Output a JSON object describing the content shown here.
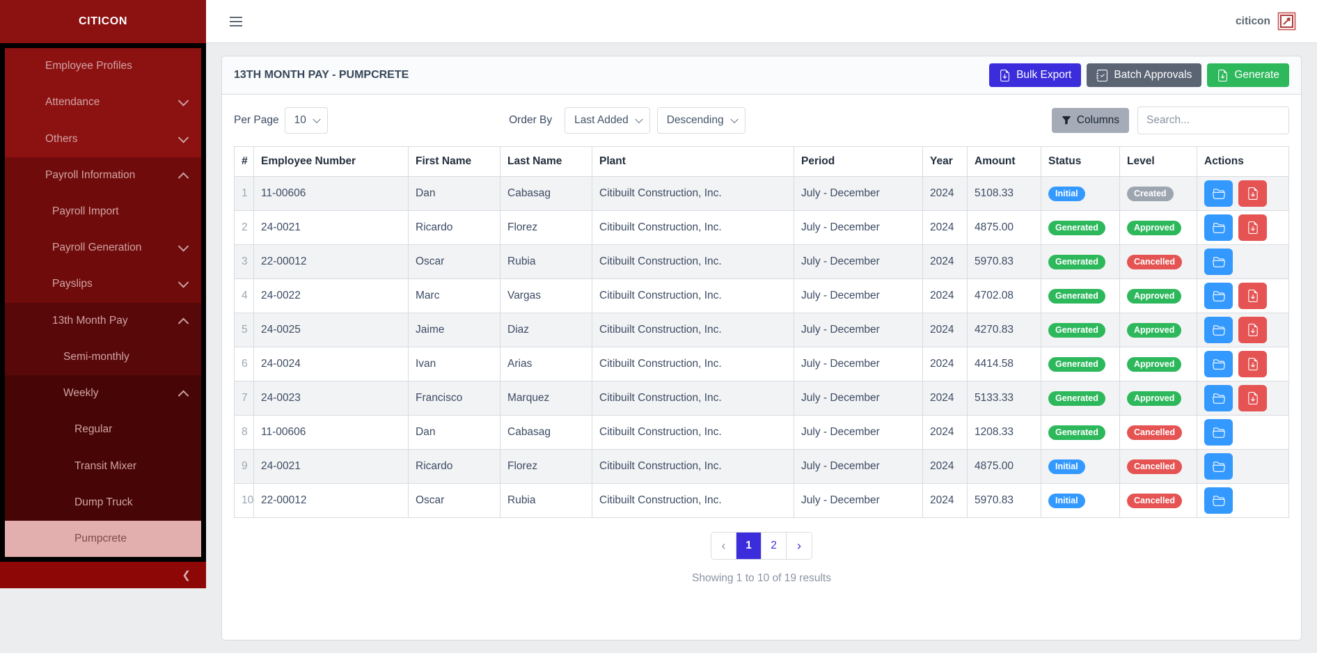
{
  "brand": "CITICON",
  "topbar": {
    "user_label": "citicon"
  },
  "sidebar": {
    "items": [
      {
        "label": "Employee Profiles",
        "level": 1,
        "group": 1,
        "chevron": null,
        "active": false
      },
      {
        "label": "Attendance",
        "level": 1,
        "group": 1,
        "chevron": "down",
        "active": false
      },
      {
        "label": "Others",
        "level": 1,
        "group": 1,
        "chevron": "down",
        "active": false
      },
      {
        "label": "Payroll Information",
        "level": 1,
        "group": 2,
        "chevron": "up",
        "active": false
      },
      {
        "label": "Payroll Import",
        "level": 2,
        "group": 2,
        "chevron": null,
        "active": false
      },
      {
        "label": "Payroll Generation",
        "level": 2,
        "group": 2,
        "chevron": "down",
        "active": false
      },
      {
        "label": "Payslips",
        "level": 2,
        "group": 2,
        "chevron": "down",
        "active": false
      },
      {
        "label": "13th Month Pay",
        "level": 2,
        "group": 3,
        "chevron": "up",
        "active": false
      },
      {
        "label": "Semi-monthly",
        "level": 3,
        "group": 3,
        "chevron": null,
        "active": false
      },
      {
        "label": "Weekly",
        "level": 3,
        "group": 4,
        "chevron": "up",
        "active": false
      },
      {
        "label": "Regular",
        "level": 4,
        "group": 4,
        "chevron": null,
        "active": false
      },
      {
        "label": "Transit Mixer",
        "level": 4,
        "group": 4,
        "chevron": null,
        "active": false
      },
      {
        "label": "Dump Truck",
        "level": 4,
        "group": 4,
        "chevron": null,
        "active": false
      },
      {
        "label": "Pumpcrete",
        "level": 4,
        "group": 4,
        "chevron": null,
        "active": true
      }
    ],
    "collapse_icon": "❮"
  },
  "page": {
    "title": "13TH MONTH PAY - PUMPCRETE",
    "buttons": [
      {
        "label": "Bulk Export",
        "icon": "file-arrow-down",
        "color": "#3b2ddb"
      },
      {
        "label": "Batch Approvals",
        "icon": "journal-check",
        "color": "#5b6473"
      },
      {
        "label": "Generate",
        "icon": "file-arrow-down",
        "color": "#2eb85c"
      }
    ]
  },
  "filters": {
    "per_page_label": "Per Page",
    "per_page_value": "10",
    "order_by_label": "Order By",
    "order_value": "Last Added",
    "direction_value": "Descending",
    "columns_label": "Columns",
    "search_placeholder": "Search..."
  },
  "table": {
    "headers": [
      "#",
      "Employee Number",
      "First Name",
      "Last Name",
      "Plant",
      "Period",
      "Year",
      "Amount",
      "Status",
      "Level",
      "Actions"
    ],
    "rows": [
      {
        "num": "1",
        "employee_number": "11-00606",
        "first_name": "Dan",
        "last_name": "Cabasag",
        "plant": "Citibuilt Construction, Inc.",
        "period": "July - December",
        "year": "2024",
        "amount": "5108.33",
        "status": "Initial",
        "level": "Created",
        "actions": [
          "folder",
          "file"
        ]
      },
      {
        "num": "2",
        "employee_number": "24-0021",
        "first_name": "Ricardo",
        "last_name": "Florez",
        "plant": "Citibuilt Construction, Inc.",
        "period": "July - December",
        "year": "2024",
        "amount": "4875.00",
        "status": "Generated",
        "level": "Approved",
        "actions": [
          "folder",
          "file"
        ]
      },
      {
        "num": "3",
        "employee_number": "22-00012",
        "first_name": "Oscar",
        "last_name": "Rubia",
        "plant": "Citibuilt Construction, Inc.",
        "period": "July - December",
        "year": "2024",
        "amount": "5970.83",
        "status": "Generated",
        "level": "Cancelled",
        "actions": [
          "folder"
        ]
      },
      {
        "num": "4",
        "employee_number": "24-0022",
        "first_name": "Marc",
        "last_name": "Vargas",
        "plant": "Citibuilt Construction, Inc.",
        "period": "July - December",
        "year": "2024",
        "amount": "4702.08",
        "status": "Generated",
        "level": "Approved",
        "actions": [
          "folder",
          "file"
        ]
      },
      {
        "num": "5",
        "employee_number": "24-0025",
        "first_name": "Jaime",
        "last_name": "Diaz",
        "plant": "Citibuilt Construction, Inc.",
        "period": "July - December",
        "year": "2024",
        "amount": "4270.83",
        "status": "Generated",
        "level": "Approved",
        "actions": [
          "folder",
          "file"
        ]
      },
      {
        "num": "6",
        "employee_number": "24-0024",
        "first_name": "Ivan",
        "last_name": "Arias",
        "plant": "Citibuilt Construction, Inc.",
        "period": "July - December",
        "year": "2024",
        "amount": "4414.58",
        "status": "Generated",
        "level": "Approved",
        "actions": [
          "folder",
          "file"
        ]
      },
      {
        "num": "7",
        "employee_number": "24-0023",
        "first_name": "Francisco",
        "last_name": "Marquez",
        "plant": "Citibuilt Construction, Inc.",
        "period": "July - December",
        "year": "2024",
        "amount": "5133.33",
        "status": "Generated",
        "level": "Approved",
        "actions": [
          "folder",
          "file"
        ]
      },
      {
        "num": "8",
        "employee_number": "11-00606",
        "first_name": "Dan",
        "last_name": "Cabasag",
        "plant": "Citibuilt Construction, Inc.",
        "period": "July - December",
        "year": "2024",
        "amount": "1208.33",
        "status": "Generated",
        "level": "Cancelled",
        "actions": [
          "folder"
        ]
      },
      {
        "num": "9",
        "employee_number": "24-0021",
        "first_name": "Ricardo",
        "last_name": "Florez",
        "plant": "Citibuilt Construction, Inc.",
        "period": "July - December",
        "year": "2024",
        "amount": "4875.00",
        "status": "Initial",
        "level": "Cancelled",
        "actions": [
          "folder"
        ]
      },
      {
        "num": "10",
        "employee_number": "22-00012",
        "first_name": "Oscar",
        "last_name": "Rubia",
        "plant": "Citibuilt Construction, Inc.",
        "period": "July - December",
        "year": "2024",
        "amount": "5970.83",
        "status": "Initial",
        "level": "Cancelled",
        "actions": [
          "folder"
        ]
      }
    ]
  },
  "badge_colors": {
    "Initial": "#3399ff",
    "Generated": "#2eb85c",
    "Created": "#9da5b1",
    "Approved": "#2eb85c",
    "Cancelled": "#e55353"
  },
  "action_colors": {
    "folder": "#3399ff",
    "file": "#e55353"
  },
  "pagination": {
    "prev": "‹",
    "pages": [
      "1",
      "2"
    ],
    "active": "1",
    "next": "›",
    "summary": "Showing 1 to 10 of 19 results"
  }
}
